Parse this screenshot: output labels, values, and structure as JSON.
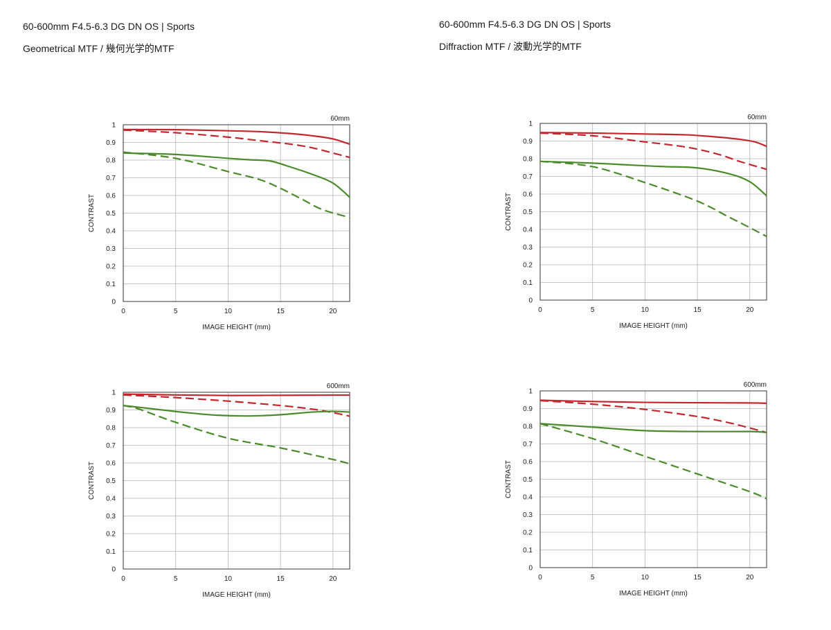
{
  "headers": {
    "left": {
      "lens": "60-600mm F4.5-6.3 DG DN OS | Sports",
      "mtf": "Geometrical MTF / 幾何光学的MTF"
    },
    "right": {
      "lens": "60-600mm F4.5-6.3 DG DN OS | Sports",
      "mtf": "Diffraction MTF / 波動光学的MTF"
    }
  },
  "colors": {
    "red": "#c4262e",
    "green": "#4a8a2a",
    "grid": "#b5b5b5",
    "axis": "#333333"
  },
  "chart_data": [
    {
      "type": "line",
      "focal_label": "60mm",
      "xlabel": "IMAGE HEIGHT (mm)",
      "ylabel": "CONTRAST",
      "xlim": [
        0,
        21.6
      ],
      "ylim": [
        0,
        1
      ],
      "x_ticks": [
        "0",
        "5",
        "10",
        "15",
        "20"
      ],
      "y_ticks": [
        "0",
        "0.1",
        "0.2",
        "0.3",
        "0.4",
        "0.5",
        "0.6",
        "0.7",
        "0.8",
        "0.9",
        "1"
      ],
      "series": [
        {
          "name": "red-solid",
          "color": "red",
          "dash": false,
          "x": [
            0,
            5,
            10,
            13,
            16,
            18,
            20,
            21.6
          ],
          "y": [
            0.973,
            0.972,
            0.966,
            0.961,
            0.95,
            0.938,
            0.92,
            0.89
          ]
        },
        {
          "name": "red-dashed",
          "color": "red",
          "dash": true,
          "x": [
            0,
            5,
            10,
            13,
            16,
            18,
            20,
            21.6
          ],
          "y": [
            0.97,
            0.955,
            0.93,
            0.91,
            0.89,
            0.87,
            0.84,
            0.815
          ]
        },
        {
          "name": "green-solid",
          "color": "green",
          "dash": false,
          "x": [
            0,
            5,
            10,
            12,
            14,
            16,
            18,
            20,
            21.6
          ],
          "y": [
            0.84,
            0.832,
            0.81,
            0.802,
            0.795,
            0.76,
            0.72,
            0.67,
            0.59
          ]
        },
        {
          "name": "green-dashed",
          "color": "green",
          "dash": true,
          "x": [
            0,
            5,
            10,
            13,
            15,
            17,
            19,
            21.6
          ],
          "y": [
            0.845,
            0.81,
            0.735,
            0.69,
            0.64,
            0.58,
            0.52,
            0.475
          ]
        }
      ]
    },
    {
      "type": "line",
      "focal_label": "60mm",
      "xlabel": "IMAGE HEIGHT (mm)",
      "ylabel": "CONTRAST",
      "xlim": [
        0,
        21.6
      ],
      "ylim": [
        0,
        1
      ],
      "x_ticks": [
        "0",
        "5",
        "10",
        "15",
        "20"
      ],
      "y_ticks": [
        "0",
        "0.1",
        "0.2",
        "0.3",
        "0.4",
        "0.5",
        "0.6",
        "0.7",
        "0.8",
        "0.9",
        "1"
      ],
      "series": [
        {
          "name": "red-solid",
          "color": "red",
          "dash": false,
          "x": [
            0,
            5,
            10,
            14,
            17,
            19,
            20.5,
            21.6
          ],
          "y": [
            0.948,
            0.945,
            0.94,
            0.935,
            0.922,
            0.91,
            0.895,
            0.87
          ]
        },
        {
          "name": "red-dashed",
          "color": "red",
          "dash": true,
          "x": [
            0,
            5,
            10,
            14,
            17,
            19,
            21.6
          ],
          "y": [
            0.945,
            0.93,
            0.895,
            0.865,
            0.825,
            0.785,
            0.74
          ]
        },
        {
          "name": "green-solid",
          "color": "green",
          "dash": false,
          "x": [
            0,
            5,
            10,
            12,
            15,
            18,
            20,
            21.6
          ],
          "y": [
            0.785,
            0.775,
            0.76,
            0.755,
            0.748,
            0.715,
            0.67,
            0.59
          ]
        },
        {
          "name": "green-dashed",
          "color": "green",
          "dash": true,
          "x": [
            0,
            5,
            10,
            15,
            18,
            20,
            21.6
          ],
          "y": [
            0.785,
            0.755,
            0.665,
            0.56,
            0.47,
            0.41,
            0.36
          ]
        }
      ]
    },
    {
      "type": "line",
      "focal_label": "600mm",
      "xlabel": "IMAGE HEIGHT (mm)",
      "ylabel": "CONTRAST",
      "xlim": [
        0,
        21.6
      ],
      "ylim": [
        0,
        1
      ],
      "x_ticks": [
        "0",
        "5",
        "10",
        "15",
        "20"
      ],
      "y_ticks": [
        "0",
        "0.1",
        "0.2",
        "0.3",
        "0.4",
        "0.5",
        "0.6",
        "0.7",
        "0.8",
        "0.9",
        "1"
      ],
      "series": [
        {
          "name": "red-solid",
          "color": "red",
          "dash": false,
          "x": [
            0,
            5,
            10,
            15,
            20,
            21.6
          ],
          "y": [
            0.99,
            0.985,
            0.982,
            0.983,
            0.984,
            0.984
          ]
        },
        {
          "name": "red-dashed",
          "color": "red",
          "dash": true,
          "x": [
            0,
            5,
            10,
            15,
            18,
            20,
            21.6
          ],
          "y": [
            0.985,
            0.97,
            0.95,
            0.925,
            0.905,
            0.885,
            0.865
          ]
        },
        {
          "name": "green-solid",
          "color": "green",
          "dash": false,
          "x": [
            0,
            3,
            6,
            9,
            12,
            15,
            18,
            20,
            21.6
          ],
          "y": [
            0.925,
            0.905,
            0.885,
            0.87,
            0.866,
            0.873,
            0.888,
            0.892,
            0.888
          ]
        },
        {
          "name": "green-dashed",
          "color": "green",
          "dash": true,
          "x": [
            0,
            1.5,
            5,
            10,
            15,
            20,
            21.6
          ],
          "y": [
            0.925,
            0.905,
            0.83,
            0.74,
            0.685,
            0.62,
            0.595
          ]
        }
      ]
    },
    {
      "type": "line",
      "focal_label": "600mm",
      "xlabel": "IMAGE HEIGHT (mm)",
      "ylabel": "CONTRAST",
      "xlim": [
        0,
        21.6
      ],
      "ylim": [
        0,
        1
      ],
      "x_ticks": [
        "0",
        "5",
        "10",
        "15",
        "20"
      ],
      "y_ticks": [
        "0",
        "0.1",
        "0.2",
        "0.3",
        "0.4",
        "0.5",
        "0.6",
        "0.7",
        "0.8",
        "0.9",
        "1"
      ],
      "series": [
        {
          "name": "red-solid",
          "color": "red",
          "dash": false,
          "x": [
            0,
            5,
            10,
            15,
            20,
            21.6
          ],
          "y": [
            0.947,
            0.94,
            0.935,
            0.933,
            0.932,
            0.93
          ]
        },
        {
          "name": "red-dashed",
          "color": "red",
          "dash": true,
          "x": [
            0,
            5,
            10,
            15,
            18,
            20,
            21.6
          ],
          "y": [
            0.945,
            0.925,
            0.895,
            0.855,
            0.82,
            0.79,
            0.765
          ]
        },
        {
          "name": "green-solid",
          "color": "green",
          "dash": false,
          "x": [
            0,
            5,
            10,
            15,
            20,
            21.6
          ],
          "y": [
            0.815,
            0.795,
            0.775,
            0.77,
            0.77,
            0.765
          ]
        },
        {
          "name": "green-dashed",
          "color": "green",
          "dash": true,
          "x": [
            0,
            5,
            10,
            15,
            20,
            21.6
          ],
          "y": [
            0.815,
            0.73,
            0.63,
            0.53,
            0.43,
            0.39
          ]
        }
      ]
    }
  ]
}
